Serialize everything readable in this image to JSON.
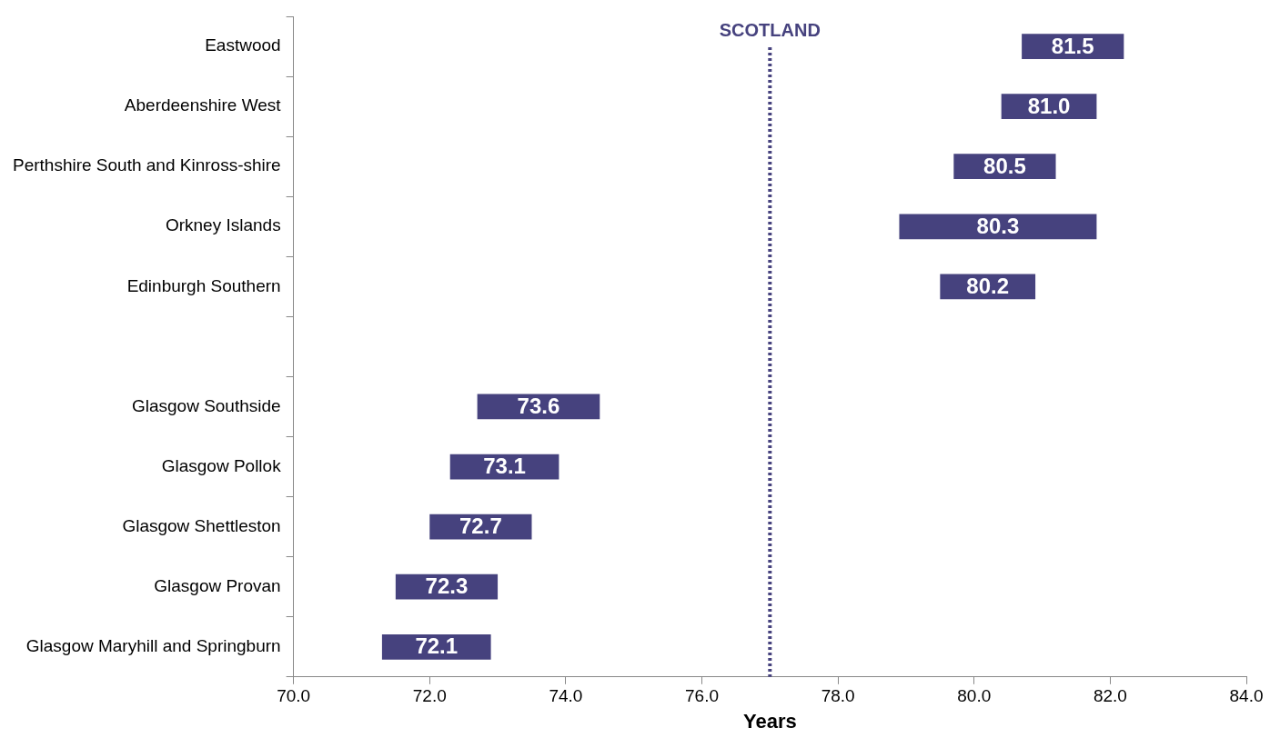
{
  "chart_data": {
    "type": "bar",
    "orientation": "horizontal",
    "categories": [
      "Eastwood",
      "Aberdeenshire West",
      "Perthshire South and Kinross-shire",
      "Orkney Islands",
      "Edinburgh Southern",
      null,
      "Glasgow Southside",
      "Glasgow Pollok",
      "Glasgow Shettleston",
      "Glasgow Provan",
      "Glasgow Maryhill and Springburn"
    ],
    "base": [
      80.7,
      80.4,
      79.7,
      78.9,
      79.5,
      null,
      72.7,
      72.3,
      72.0,
      71.5,
      71.3
    ],
    "values": [
      1.5,
      1.4,
      1.5,
      2.9,
      1.4,
      null,
      1.8,
      1.6,
      1.5,
      1.5,
      1.6
    ],
    "color": "#46427e",
    "annotations": [
      "81.5",
      "81.0",
      "80.5",
      "80.3",
      "80.2",
      "73.6",
      "73.1",
      "72.7",
      "72.3",
      "72.1"
    ],
    "xlim": [
      70,
      84
    ],
    "xticks": [
      {
        "value": 70,
        "label": "70.0"
      },
      {
        "value": 72,
        "label": "72.0"
      },
      {
        "value": 74,
        "label": "74.0"
      },
      {
        "value": 76,
        "label": "76.0"
      },
      {
        "value": 78,
        "label": "78.0"
      },
      {
        "value": 80,
        "label": "80.0"
      },
      {
        "value": 82,
        "label": "82.0"
      },
      {
        "value": 84,
        "label": "84.0"
      }
    ],
    "xlabel": "Years",
    "ref_lines": [
      {
        "axis": "x",
        "value": 77.0,
        "label": "SCOTLAND",
        "color": "#46427e",
        "line_style": "dotted"
      }
    ]
  }
}
